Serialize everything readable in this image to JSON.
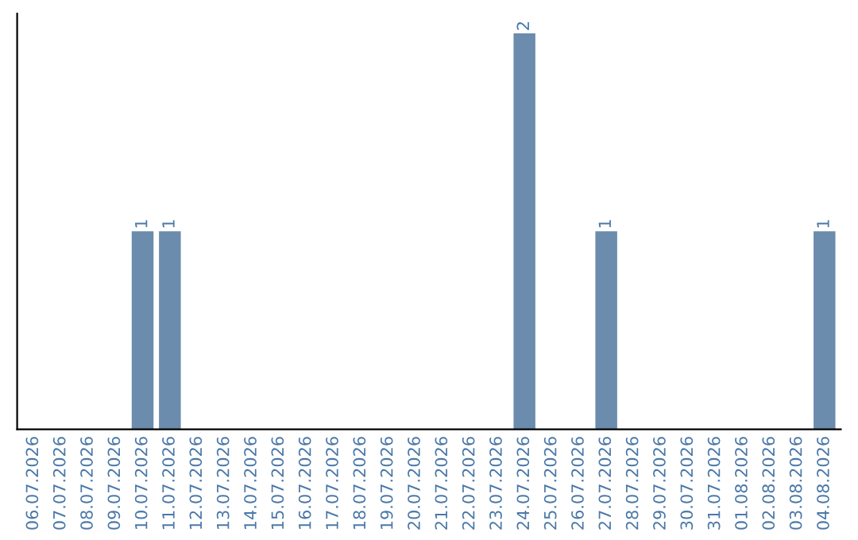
{
  "chart_data": {
    "type": "bar",
    "categories": [
      "06.07.2026",
      "07.07.2026",
      "08.07.2026",
      "09.07.2026",
      "10.07.2026",
      "11.07.2026",
      "12.07.2026",
      "13.07.2026",
      "14.07.2026",
      "15.07.2026",
      "16.07.2026",
      "17.07.2026",
      "18.07.2026",
      "19.07.2026",
      "20.07.2026",
      "21.07.2026",
      "22.07.2026",
      "23.07.2026",
      "24.07.2026",
      "25.07.2026",
      "26.07.2026",
      "27.07.2026",
      "28.07.2026",
      "29.07.2026",
      "30.07.2026",
      "31.07.2026",
      "01.08.2026",
      "02.08.2026",
      "03.08.2026",
      "04.08.2026"
    ],
    "values": [
      0,
      0,
      0,
      0,
      1,
      1,
      0,
      0,
      0,
      0,
      0,
      0,
      0,
      0,
      0,
      0,
      0,
      0,
      2,
      0,
      0,
      1,
      0,
      0,
      0,
      0,
      0,
      0,
      0,
      1
    ],
    "color": "#6b8cac",
    "value_labels": [
      null,
      null,
      null,
      null,
      "1",
      "1",
      null,
      null,
      null,
      null,
      null,
      null,
      null,
      null,
      null,
      null,
      null,
      null,
      "2",
      null,
      null,
      "1",
      null,
      null,
      null,
      null,
      null,
      null,
      null,
      "1"
    ],
    "tick_labels": "x",
    "grid": false,
    "legend": false
  }
}
